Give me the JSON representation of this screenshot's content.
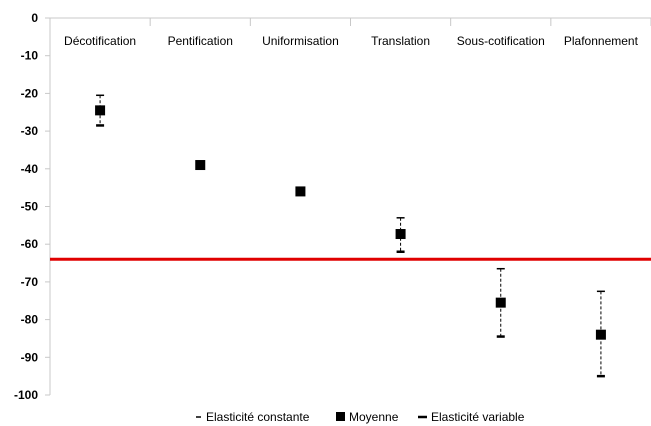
{
  "chart_data": {
    "type": "scatter",
    "title": "",
    "xlabel": "",
    "ylabel": "",
    "ylim": [
      -100,
      0
    ],
    "yticks": [
      0,
      -10,
      -20,
      -30,
      -40,
      -50,
      -60,
      -70,
      -80,
      -90,
      -100
    ],
    "categories": [
      "Décotification",
      "Pentification",
      "Uniformisation",
      "Translation",
      "Sous-cotification",
      "Plafonnement"
    ],
    "series": [
      {
        "name": "Elasticité constante",
        "marker": "dash-thin",
        "values": [
          -20.5,
          null,
          null,
          -53,
          -66.5,
          -72.5
        ]
      },
      {
        "name": "Moyenne",
        "marker": "square",
        "values": [
          -24.5,
          -39,
          -46,
          -57.3,
          -75.5,
          -84
        ]
      },
      {
        "name": "Elasticité variable",
        "marker": "dash-thick",
        "values": [
          -28.5,
          null,
          null,
          -62,
          -84.5,
          -95
        ]
      }
    ],
    "reference_line": {
      "value": -64,
      "color": "#e00000"
    },
    "grid": {
      "vertical_category_separators": true,
      "horizontal": false
    },
    "legend_position": "bottom"
  }
}
